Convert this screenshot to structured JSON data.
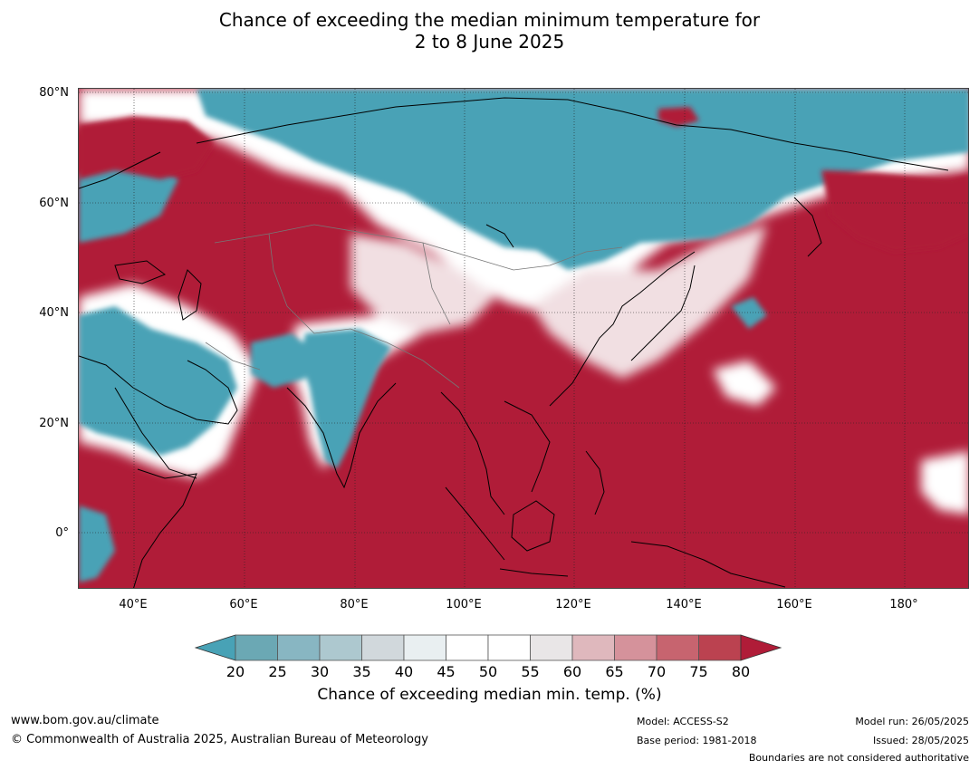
{
  "title": {
    "line1": "Chance of exceeding the median minimum temperature for",
    "line2": "2 to 8 June 2025"
  },
  "map": {
    "lat_labels": [
      "80°N",
      "60°N",
      "40°N",
      "20°N",
      "0°"
    ],
    "lon_labels": [
      "40°E",
      "60°E",
      "80°E",
      "100°E",
      "120°E",
      "140°E",
      "160°E",
      "180°"
    ],
    "colors": {
      "below": "#48a2b6",
      "near": "#ffffff",
      "above": "#b01c38"
    }
  },
  "colorbar": {
    "ticks": [
      "20",
      "25",
      "30",
      "35",
      "40",
      "45",
      "50",
      "55",
      "60",
      "65",
      "70",
      "75",
      "80"
    ],
    "segment_colors": [
      "#6ba8b4",
      "#88b6c2",
      "#adc8cf",
      "#d1d8dc",
      "#e9eff1",
      "#ffffff",
      "#ffffff",
      "#e9e6e7",
      "#dfb8bd",
      "#d5929b",
      "#c7646f",
      "#bb4250"
    ],
    "low_extend_color": "#48a2b6",
    "high_extend_color": "#b01c38",
    "label": "Chance of exceeding median min. temp. (%)"
  },
  "footer": {
    "url": "www.bom.gov.au/climate",
    "copyright": "© Commonwealth of Australia 2025, Australian Bureau of Meteorology",
    "model": "Model: ACCESS-S2",
    "base_period": "Base period: 1981-2018",
    "model_run": "Model run: 26/05/2025",
    "issued": "Issued: 28/05/2025",
    "boundaries": "Boundaries are not considered authoritative"
  }
}
